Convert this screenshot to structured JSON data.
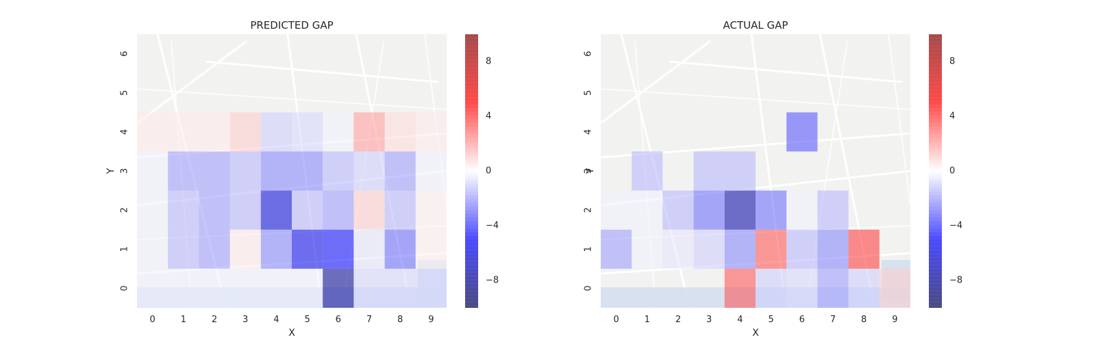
{
  "chart_data": [
    {
      "type": "heatmap",
      "title": "PREDICTED GAP",
      "xlabel": "X",
      "ylabel": "Y",
      "x_ticks": [
        "0",
        "1",
        "2",
        "3",
        "4",
        "5",
        "6",
        "7",
        "8",
        "9"
      ],
      "y_ticks": [
        "0",
        "1",
        "2",
        "3",
        "4",
        "5",
        "6"
      ],
      "colormap": "seismic",
      "vmin": -10,
      "vmax": 10,
      "colorbar_ticks": [
        "8",
        "4",
        "0",
        "−4",
        "−8"
      ],
      "colorbar_tick_values": [
        8,
        4,
        0,
        -4,
        -8
      ],
      "cells": [
        {
          "x": 0,
          "y": 0,
          "value": -0.3
        },
        {
          "x": 1,
          "y": 0,
          "value": -0.3
        },
        {
          "x": 2,
          "y": 0,
          "value": -0.3
        },
        {
          "x": 3,
          "y": 0,
          "value": -0.3
        },
        {
          "x": 4,
          "y": 0,
          "value": -0.3
        },
        {
          "x": 5,
          "y": 0,
          "value": -0.3
        },
        {
          "x": 6,
          "y": 0,
          "value": -8.0
        },
        {
          "x": 7,
          "y": 0,
          "value": -0.8
        },
        {
          "x": 8,
          "y": 0,
          "value": -0.8
        },
        {
          "x": 9,
          "y": 0,
          "value": -0.8
        },
        {
          "x": 0,
          "y": 1,
          "value": -0.3
        },
        {
          "x": 1,
          "y": 1,
          "value": -1.5
        },
        {
          "x": 2,
          "y": 1,
          "value": -2.0
        },
        {
          "x": 3,
          "y": 1,
          "value": 0.4
        },
        {
          "x": 4,
          "y": 1,
          "value": -2.5
        },
        {
          "x": 5,
          "y": 1,
          "value": -5.5
        },
        {
          "x": 6,
          "y": 1,
          "value": -5.0
        },
        {
          "x": 7,
          "y": 1,
          "value": -0.5
        },
        {
          "x": 8,
          "y": 1,
          "value": -3.0
        },
        {
          "x": 9,
          "y": 1,
          "value": 0.3
        },
        {
          "x": 0,
          "y": 2,
          "value": -0.3
        },
        {
          "x": 1,
          "y": 2,
          "value": -1.5
        },
        {
          "x": 2,
          "y": 2,
          "value": -2.0
        },
        {
          "x": 3,
          "y": 2,
          "value": -1.5
        },
        {
          "x": 4,
          "y": 2,
          "value": -6.0
        },
        {
          "x": 5,
          "y": 2,
          "value": -1.5
        },
        {
          "x": 6,
          "y": 2,
          "value": -2.0
        },
        {
          "x": 7,
          "y": 2,
          "value": 1.0
        },
        {
          "x": 8,
          "y": 2,
          "value": -1.5
        },
        {
          "x": 9,
          "y": 2,
          "value": 0.3
        },
        {
          "x": 0,
          "y": 3,
          "value": -0.3
        },
        {
          "x": 1,
          "y": 3,
          "value": -2.0
        },
        {
          "x": 2,
          "y": 3,
          "value": -2.0
        },
        {
          "x": 3,
          "y": 3,
          "value": -1.5
        },
        {
          "x": 4,
          "y": 3,
          "value": -2.5
        },
        {
          "x": 5,
          "y": 3,
          "value": -2.5
        },
        {
          "x": 6,
          "y": 3,
          "value": -1.5
        },
        {
          "x": 7,
          "y": 3,
          "value": -1.0
        },
        {
          "x": 8,
          "y": 3,
          "value": -2.0
        },
        {
          "x": 9,
          "y": 3,
          "value": -0.3
        },
        {
          "x": 0,
          "y": 4,
          "value": 0.4
        },
        {
          "x": 1,
          "y": 4,
          "value": 0.4
        },
        {
          "x": 2,
          "y": 4,
          "value": 0.4
        },
        {
          "x": 3,
          "y": 4,
          "value": 1.0
        },
        {
          "x": 4,
          "y": 4,
          "value": -1.0
        },
        {
          "x": 5,
          "y": 4,
          "value": -0.8
        },
        {
          "x": 6,
          "y": 4,
          "value": -0.3
        },
        {
          "x": 7,
          "y": 4,
          "value": 2.0
        },
        {
          "x": 8,
          "y": 4,
          "value": 0.7
        },
        {
          "x": 9,
          "y": 4,
          "value": 0.4
        }
      ]
    },
    {
      "type": "heatmap",
      "title": "ACTUAL GAP",
      "xlabel": "X",
      "ylabel": "Y",
      "x_ticks": [
        "0",
        "1",
        "2",
        "3",
        "4",
        "5",
        "6",
        "7",
        "8",
        "9"
      ],
      "y_ticks": [
        "0",
        "1",
        "2",
        "3",
        "4",
        "5",
        "6"
      ],
      "colormap": "seismic",
      "vmin": -10,
      "vmax": 10,
      "colorbar_ticks": [
        "8",
        "4",
        "0",
        "−4",
        "−8"
      ],
      "colorbar_tick_values": [
        8,
        4,
        0,
        -4,
        -8
      ],
      "cells": [
        {
          "x": 4,
          "y": 0,
          "value": 3.5
        },
        {
          "x": 5,
          "y": 0,
          "value": -1.0
        },
        {
          "x": 6,
          "y": 0,
          "value": -0.8
        },
        {
          "x": 7,
          "y": 0,
          "value": -2.0
        },
        {
          "x": 8,
          "y": 0,
          "value": -1.0
        },
        {
          "x": 9,
          "y": 0,
          "value": 1.0
        },
        {
          "x": 0,
          "y": 1,
          "value": -2.0
        },
        {
          "x": 1,
          "y": 1,
          "value": -0.3
        },
        {
          "x": 2,
          "y": 1,
          "value": -0.5
        },
        {
          "x": 3,
          "y": 1,
          "value": -1.0
        },
        {
          "x": 4,
          "y": 1,
          "value": -2.5
        },
        {
          "x": 5,
          "y": 1,
          "value": 3.5
        },
        {
          "x": 6,
          "y": 1,
          "value": -1.5
        },
        {
          "x": 7,
          "y": 1,
          "value": -2.5
        },
        {
          "x": 8,
          "y": 1,
          "value": 4.0
        },
        {
          "x": 0,
          "y": 2,
          "value": -0.3
        },
        {
          "x": 1,
          "y": 2,
          "value": -0.3
        },
        {
          "x": 2,
          "y": 2,
          "value": -1.5
        },
        {
          "x": 3,
          "y": 2,
          "value": -3.0
        },
        {
          "x": 4,
          "y": 2,
          "value": -7.5
        },
        {
          "x": 5,
          "y": 2,
          "value": -3.0
        },
        {
          "x": 6,
          "y": 2,
          "value": -0.3
        },
        {
          "x": 7,
          "y": 2,
          "value": -1.5
        },
        {
          "x": 1,
          "y": 3,
          "value": -1.5
        },
        {
          "x": 3,
          "y": 3,
          "value": -1.5
        },
        {
          "x": 4,
          "y": 3,
          "value": -1.5
        },
        {
          "x": 6,
          "y": 4,
          "value": -3.5
        }
      ]
    }
  ]
}
